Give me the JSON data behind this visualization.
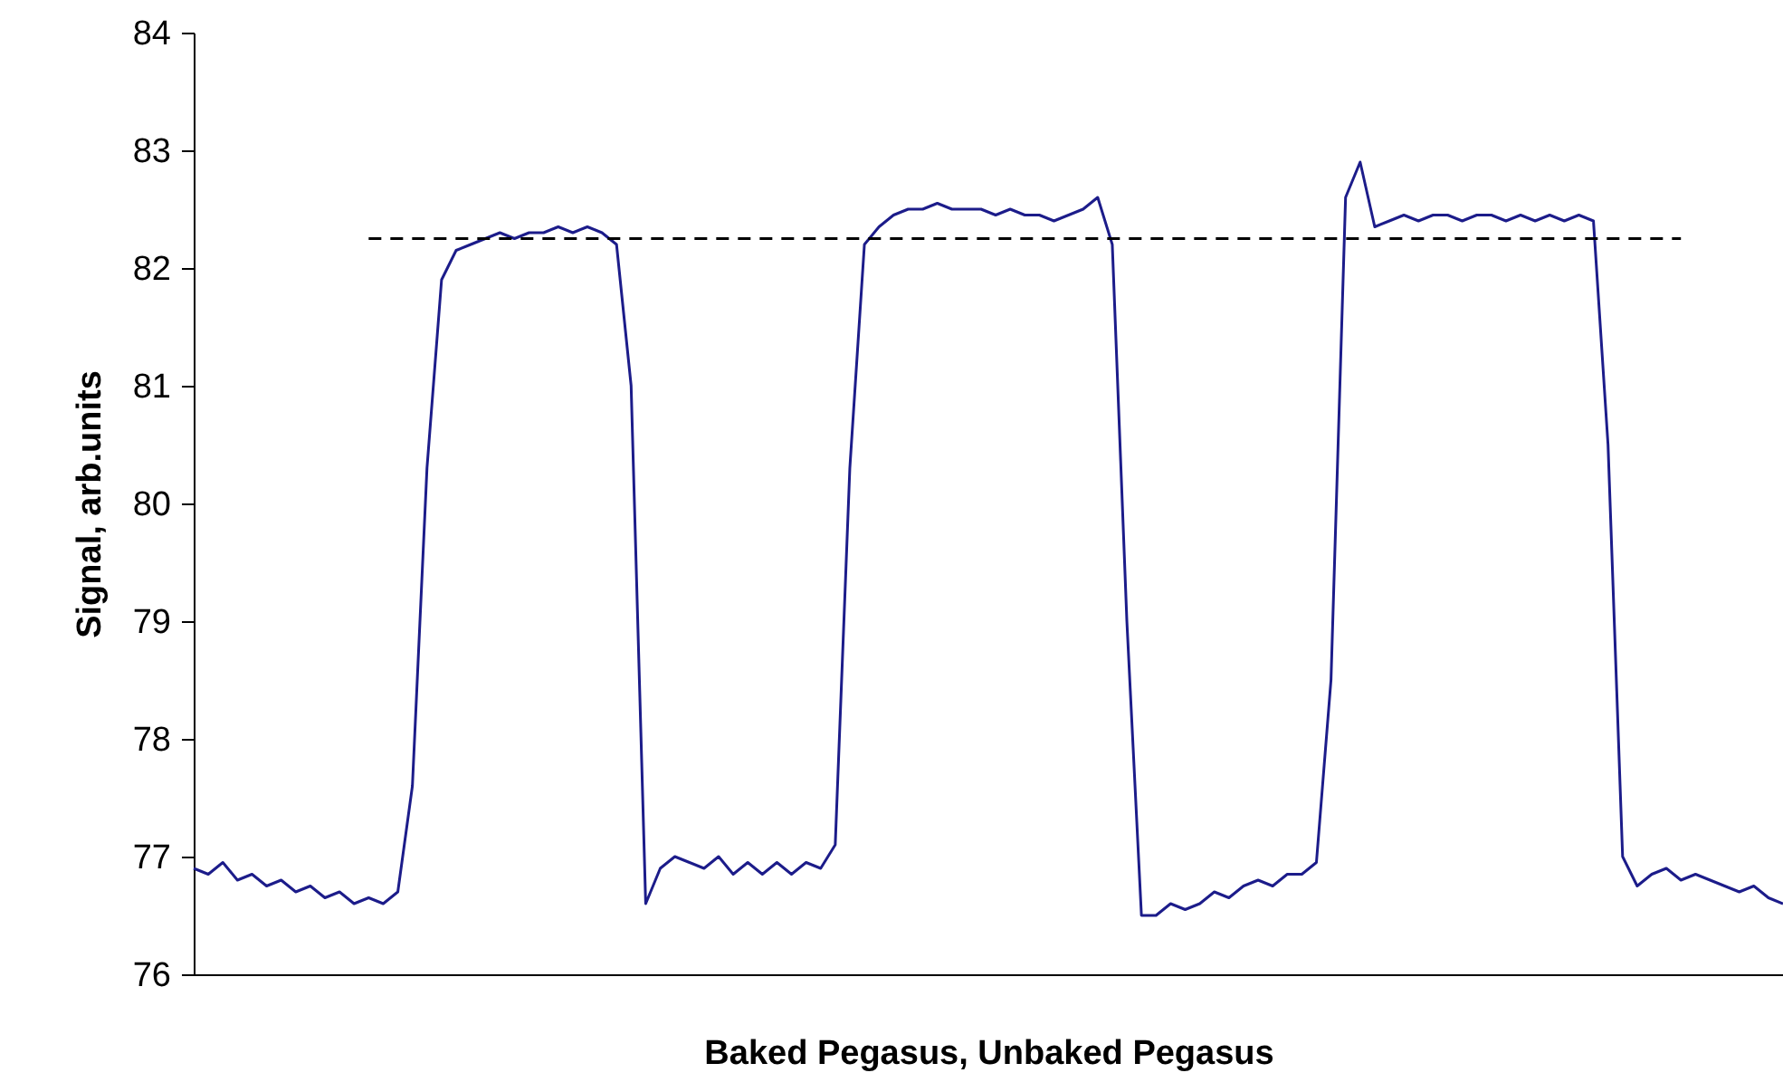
{
  "chart_data": {
    "type": "line",
    "xlabel": "Baked Pegasus, Unbaked Pegasus",
    "ylabel": "Signal, arb.units",
    "ylim": [
      76,
      84
    ],
    "yticks": [
      76,
      77,
      78,
      79,
      80,
      81,
      82,
      83,
      84
    ],
    "grid": false,
    "marker": "none",
    "tick_labels": "y",
    "categories": [
      null,
      null,
      null,
      null,
      null,
      null,
      null,
      null,
      null,
      null,
      null,
      null,
      null,
      null,
      null,
      null,
      null,
      null,
      null,
      null,
      null,
      null,
      null,
      null,
      null,
      null,
      null,
      null,
      null,
      null,
      null,
      null,
      null,
      null,
      null,
      null,
      null,
      null,
      null,
      null,
      null,
      null,
      null,
      null,
      null,
      null,
      null,
      null,
      null,
      null,
      null,
      null,
      null,
      null,
      null,
      null,
      null,
      null,
      null,
      null,
      null,
      null,
      null,
      null,
      null,
      null,
      null,
      null,
      null,
      null,
      null,
      null,
      null,
      null,
      null,
      null,
      null,
      null,
      null,
      null,
      null,
      null,
      null,
      null,
      null,
      null,
      null,
      null,
      null,
      null,
      null,
      null,
      null,
      null,
      null,
      null,
      null,
      null,
      null,
      null,
      null,
      null,
      null,
      null,
      null,
      null,
      null,
      null,
      null,
      null
    ],
    "series": [
      {
        "color": "#1c1c8a",
        "line_style": "solid",
        "values": [
          76.9,
          76.85,
          76.95,
          76.8,
          76.85,
          76.75,
          76.8,
          76.7,
          76.75,
          76.65,
          76.7,
          76.6,
          76.65,
          76.6,
          76.7,
          77.6,
          80.3,
          81.9,
          82.15,
          82.2,
          82.25,
          82.3,
          82.25,
          82.3,
          82.3,
          82.35,
          82.3,
          82.35,
          82.3,
          82.2,
          81.0,
          76.6,
          76.9,
          77.0,
          76.95,
          76.9,
          77.0,
          76.85,
          76.95,
          76.85,
          76.95,
          76.85,
          76.95,
          76.9,
          77.1,
          80.3,
          82.2,
          82.35,
          82.45,
          82.5,
          82.5,
          82.55,
          82.5,
          82.5,
          82.5,
          82.45,
          82.5,
          82.45,
          82.45,
          82.4,
          82.45,
          82.5,
          82.6,
          82.2,
          79.0,
          76.5,
          76.5,
          76.6,
          76.55,
          76.6,
          76.7,
          76.65,
          76.75,
          76.8,
          76.75,
          76.85,
          76.85,
          76.95,
          78.5,
          82.6,
          82.9,
          82.35,
          82.4,
          82.45,
          82.4,
          82.45,
          82.45,
          82.4,
          82.45,
          82.45,
          82.4,
          82.45,
          82.4,
          82.45,
          82.4,
          82.45,
          82.4,
          80.5,
          77.0,
          76.75,
          76.85,
          76.9,
          76.8,
          76.85,
          76.8,
          76.75,
          76.7,
          76.75,
          76.65,
          76.6
        ]
      },
      {
        "color": "#000000",
        "line_style": "dashed",
        "values": [
          null,
          null,
          null,
          null,
          null,
          null,
          null,
          null,
          null,
          null,
          null,
          null,
          82.25,
          82.25,
          82.25,
          82.25,
          82.25,
          82.25,
          82.25,
          82.25,
          82.25,
          82.25,
          82.25,
          82.25,
          82.25,
          82.25,
          82.25,
          82.25,
          82.25,
          82.25,
          82.25,
          82.25,
          82.25,
          82.25,
          82.25,
          82.25,
          82.25,
          82.25,
          82.25,
          82.25,
          82.25,
          82.25,
          82.25,
          82.25,
          82.25,
          82.25,
          82.25,
          82.25,
          82.25,
          82.25,
          82.25,
          82.25,
          82.25,
          82.25,
          82.25,
          82.25,
          82.25,
          82.25,
          82.25,
          82.25,
          82.25,
          82.25,
          82.25,
          82.25,
          82.25,
          82.25,
          82.25,
          82.25,
          82.25,
          82.25,
          82.25,
          82.25,
          82.25,
          82.25,
          82.25,
          82.25,
          82.25,
          82.25,
          82.25,
          82.25,
          82.25,
          82.25,
          82.25,
          82.25,
          82.25,
          82.25,
          82.25,
          82.25,
          82.25,
          82.25,
          82.25,
          82.25,
          82.25,
          82.25,
          82.25,
          82.25,
          82.25,
          82.25,
          82.25,
          82.25,
          82.25,
          82.25,
          82.25,
          null,
          null,
          null,
          null,
          null,
          null,
          null
        ]
      }
    ]
  }
}
